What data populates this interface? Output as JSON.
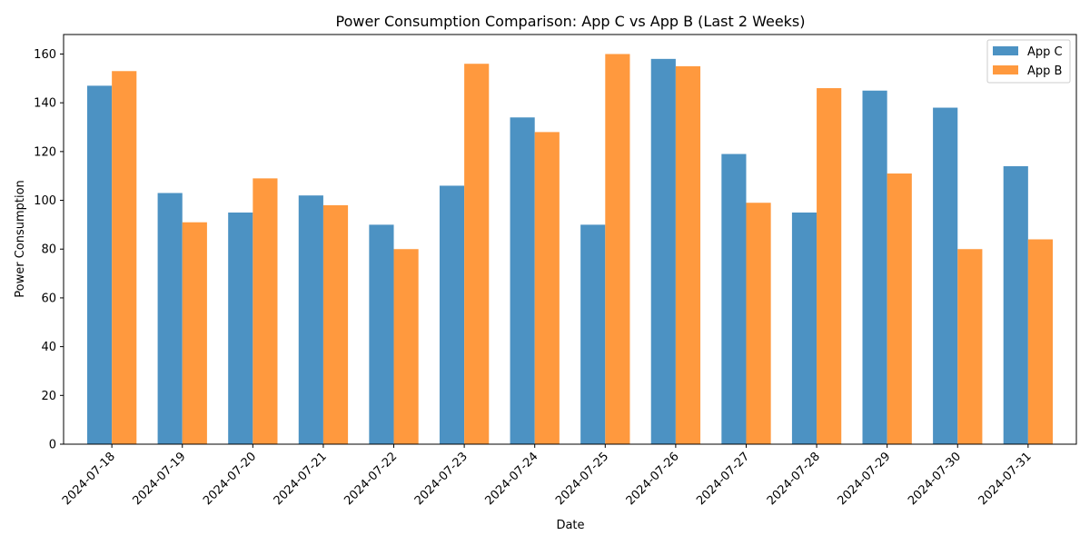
{
  "chart_data": {
    "type": "bar",
    "title": "Power Consumption Comparison: App C vs App B (Last 2 Weeks)",
    "xlabel": "Date",
    "ylabel": "Power Consumption",
    "categories": [
      "2024-07-18",
      "2024-07-19",
      "2024-07-20",
      "2024-07-21",
      "2024-07-22",
      "2024-07-23",
      "2024-07-24",
      "2024-07-25",
      "2024-07-26",
      "2024-07-27",
      "2024-07-28",
      "2024-07-29",
      "2024-07-30",
      "2024-07-31"
    ],
    "series": [
      {
        "name": "App C",
        "color": "#4c92c3",
        "values": [
          147,
          103,
          95,
          102,
          90,
          106,
          134,
          90,
          158,
          119,
          95,
          145,
          138,
          114
        ]
      },
      {
        "name": "App B",
        "color": "#ff993e",
        "values": [
          153,
          91,
          109,
          98,
          80,
          156,
          128,
          160,
          155,
          99,
          146,
          111,
          80,
          84
        ]
      }
    ],
    "ylim": [
      0,
      168
    ],
    "yticks": [
      0,
      20,
      40,
      60,
      80,
      100,
      120,
      140,
      160
    ],
    "grid": false,
    "legend_position": "top-right"
  }
}
